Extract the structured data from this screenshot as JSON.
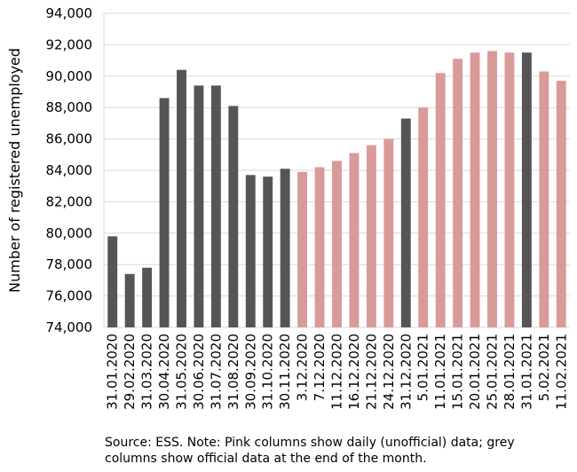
{
  "chart_data": {
    "type": "bar",
    "ylabel": "Number of registered unemployed",
    "xlabel": "",
    "ylim": [
      74000,
      94000
    ],
    "ytick_step": 2000,
    "yticks": [
      "74,000",
      "76,000",
      "78,000",
      "80,000",
      "82,000",
      "84,000",
      "86,000",
      "88,000",
      "90,000",
      "92,000",
      "94,000"
    ],
    "grid": "horizontal",
    "colors": {
      "official": "#555555",
      "daily": "#d99a9a"
    },
    "categories": [
      "31.01.2020",
      "29.02.2020",
      "31.03.2020",
      "30.04.2020",
      "31.05.2020",
      "30.06.2020",
      "31.07.2020",
      "31.08.2020",
      "30.09.2020",
      "31.10.2020",
      "30.11.2020",
      "3.12.2020",
      "7.12.2020",
      "11.12.2020",
      "16.12.2020",
      "21.12.2020",
      "24.12.2020",
      "31.12.2020",
      "5.01.2021",
      "11.01.2021",
      "15.01.2021",
      "20.01.2021",
      "25.01.2021",
      "28.01.2021",
      "31.01.2021",
      "5.02.2021",
      "11.02.2021"
    ],
    "values": [
      79800,
      77400,
      77800,
      88600,
      90400,
      89400,
      89400,
      88100,
      83700,
      83600,
      84100,
      83900,
      84200,
      84600,
      85100,
      85600,
      86000,
      87300,
      88000,
      90200,
      91100,
      91500,
      91600,
      91500,
      91500,
      90300,
      89700
    ],
    "kinds": [
      "official",
      "official",
      "official",
      "official",
      "official",
      "official",
      "official",
      "official",
      "official",
      "official",
      "official",
      "daily",
      "daily",
      "daily",
      "daily",
      "daily",
      "daily",
      "official",
      "daily",
      "daily",
      "daily",
      "daily",
      "daily",
      "daily",
      "official",
      "daily",
      "daily"
    ]
  },
  "note": {
    "text": "Source: ESS. Note: Pink columns show daily (unofficial) data; grey columns show official data at the end of the month."
  }
}
